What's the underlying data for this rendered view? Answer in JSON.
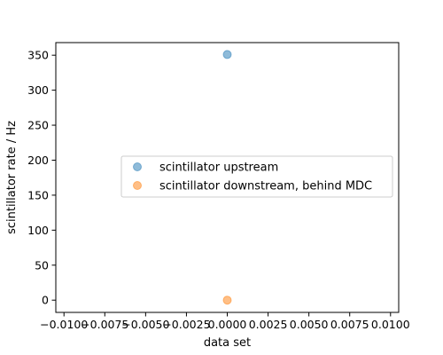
{
  "chart_data": {
    "type": "scatter",
    "title": "",
    "xlabel": "data set",
    "ylabel": "scintillator rate / Hz",
    "xlim": [
      -0.0105,
      0.0105
    ],
    "ylim": [
      -17.5,
      368
    ],
    "xticks": [
      -0.01,
      -0.0075,
      -0.005,
      -0.0025,
      0.0,
      0.0025,
      0.005,
      0.0075,
      0.01
    ],
    "xtick_labels": [
      "−0.0100",
      "−0.0075",
      "−0.0050",
      "−0.0025",
      "0.0000",
      "0.0025",
      "0.0050",
      "0.0075",
      "0.0100"
    ],
    "yticks": [
      0,
      50,
      100,
      150,
      200,
      250,
      300,
      350
    ],
    "ytick_labels": [
      "0",
      "50",
      "100",
      "150",
      "200",
      "250",
      "300",
      "350"
    ],
    "grid": false,
    "legend_position": "center-right",
    "series": [
      {
        "name": "scintillator upstream",
        "color": "#1f77b4",
        "x": [
          0.0
        ],
        "y": [
          351
        ]
      },
      {
        "name": "scintillator downstream, behind MDC",
        "color": "#ff7f0e",
        "x": [
          0.0
        ],
        "y": [
          0
        ]
      }
    ]
  }
}
